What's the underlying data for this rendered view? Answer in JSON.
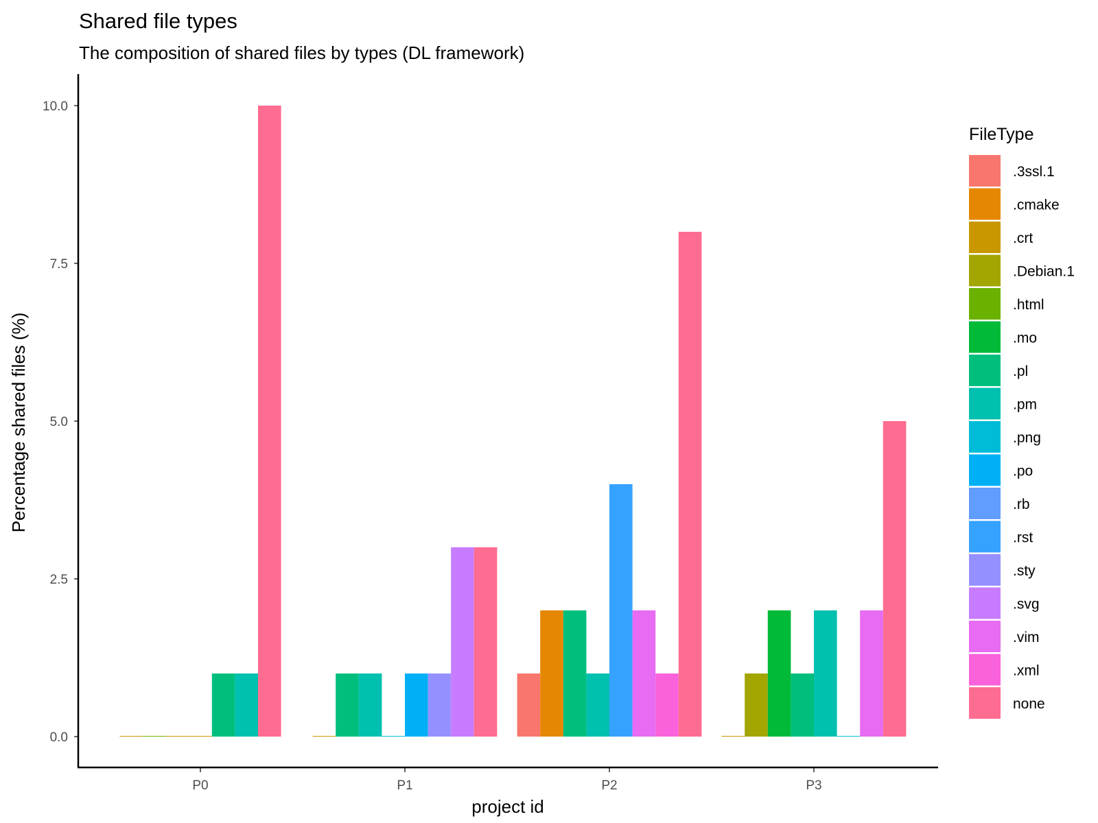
{
  "chart_data": {
    "type": "bar",
    "title": "Shared file types",
    "subtitle": "The composition of shared files by types (DL framework)",
    "xlabel": "project id",
    "ylabel": "Percentage shared files (%)",
    "categories": [
      "P0",
      "P1",
      "P2",
      "P3"
    ],
    "ylim": [
      0,
      10.5
    ],
    "yticks": [
      0,
      2.5,
      5,
      7.5,
      10
    ],
    "ytick_labels": [
      "0.0",
      "2.5",
      "5.0",
      "7.5",
      "10.0"
    ],
    "grid": false,
    "legend": {
      "title": "FileType",
      "position": "right"
    },
    "series": [
      {
        "name": ".3ssl.1",
        "color": "#F8766D",
        "values": [
          null,
          null,
          1,
          null
        ]
      },
      {
        "name": ".cmake",
        "color": "#E58700",
        "values": [
          null,
          null,
          2,
          null
        ]
      },
      {
        "name": ".crt",
        "color": "#C99800",
        "values": [
          null,
          null,
          null,
          null
        ]
      },
      {
        "name": ".Debian.1",
        "color": "#A3A500",
        "values": [
          null,
          null,
          null,
          1
        ]
      },
      {
        "name": ".html",
        "color": "#6BB100",
        "values": [
          null,
          null,
          null,
          null
        ]
      },
      {
        "name": ".mo",
        "color": "#00BA38",
        "values": [
          null,
          null,
          null,
          2
        ]
      },
      {
        "name": ".pl",
        "color": "#00BF7D",
        "values": [
          1,
          1,
          2,
          1
        ]
      },
      {
        "name": ".pm",
        "color": "#00C0AF",
        "values": [
          1,
          1,
          1,
          2
        ]
      },
      {
        "name": ".png",
        "color": "#00BCD8",
        "values": [
          null,
          null,
          null,
          null
        ]
      },
      {
        "name": ".po",
        "color": "#00B0F6",
        "values": [
          null,
          1,
          null,
          null
        ]
      },
      {
        "name": ".rb",
        "color": "#619CFF",
        "values": [
          null,
          null,
          null,
          null
        ]
      },
      {
        "name": ".rst",
        "color": "#35A2FF",
        "values": [
          null,
          null,
          4,
          null
        ]
      },
      {
        "name": ".sty",
        "color": "#9590FF",
        "values": [
          null,
          1,
          null,
          null
        ]
      },
      {
        "name": ".svg",
        "color": "#C77CFF",
        "values": [
          null,
          3,
          null,
          null
        ]
      },
      {
        "name": ".vim",
        "color": "#E76BF3",
        "values": [
          null,
          null,
          2,
          2
        ]
      },
      {
        "name": ".xml",
        "color": "#FA62DB",
        "values": [
          null,
          null,
          1,
          null
        ]
      },
      {
        "name": "none",
        "color": "#FF6C91",
        "values": [
          10,
          3,
          8,
          5
        ]
      }
    ],
    "groups": [
      {
        "category": "P0",
        "bars": [
          {
            "series": ".crt",
            "value": 0
          },
          {
            "series": ".html",
            "value": 0
          },
          {
            "series": ".crt",
            "value": 0
          },
          {
            "series": ".crt",
            "value": 0
          },
          {
            "series": ".pl",
            "value": 1
          },
          {
            "series": ".pm",
            "value": 1
          },
          {
            "series": "none",
            "value": 10
          }
        ]
      },
      {
        "category": "P1",
        "bars": [
          {
            "series": ".crt",
            "value": 0
          },
          {
            "series": ".pl",
            "value": 1
          },
          {
            "series": ".pm",
            "value": 1
          },
          {
            "series": ".png",
            "value": 0
          },
          {
            "series": ".po",
            "value": 1
          },
          {
            "series": ".sty",
            "value": 1
          },
          {
            "series": ".svg",
            "value": 3
          },
          {
            "series": "none",
            "value": 3
          }
        ]
      },
      {
        "category": "P2",
        "bars": [
          {
            "series": ".3ssl.1",
            "value": 1
          },
          {
            "series": ".cmake",
            "value": 2
          },
          {
            "series": ".pl",
            "value": 2
          },
          {
            "series": ".pm",
            "value": 1
          },
          {
            "series": ".rst",
            "value": 4
          },
          {
            "series": ".vim",
            "value": 2
          },
          {
            "series": ".xml",
            "value": 1
          },
          {
            "series": "none",
            "value": 8
          }
        ]
      },
      {
        "category": "P3",
        "bars": [
          {
            "series": ".crt",
            "value": 0
          },
          {
            "series": ".Debian.1",
            "value": 1
          },
          {
            "series": ".mo",
            "value": 2
          },
          {
            "series": ".pl",
            "value": 1
          },
          {
            "series": ".pm",
            "value": 2
          },
          {
            "series": ".png",
            "value": 0
          },
          {
            "series": ".vim",
            "value": 2
          },
          {
            "series": "none",
            "value": 5
          }
        ]
      }
    ]
  }
}
